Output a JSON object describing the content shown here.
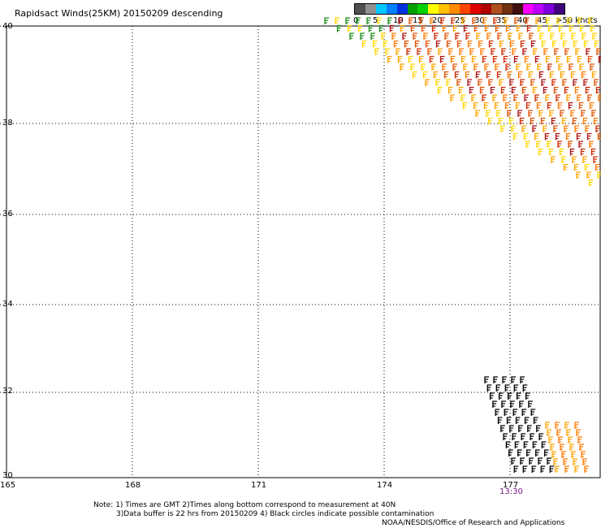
{
  "title": "Rapidsact Winds(25KM) 20150209 descending",
  "legend": {
    "colors": [
      "#505050",
      "#909090",
      "#00c8ff",
      "#0080ff",
      "#0030e0",
      "#00a000",
      "#00d000",
      "#ffff00",
      "#ffc000",
      "#ff8c00",
      "#ff4500",
      "#e00000",
      "#b00000",
      "#b05020",
      "#703010",
      "#401010",
      "#ff00ff",
      "#c000ff",
      "#8000e0",
      "#400080"
    ],
    "labels": [
      "0",
      "5",
      "10",
      "15",
      "20",
      "25",
      "30",
      "35",
      "40",
      "45",
      ">50 knots"
    ]
  },
  "axes": {
    "lat_labels": [
      "40",
      "38",
      "36",
      "34",
      "32",
      "30"
    ],
    "lon_labels": [
      "165",
      "168",
      "171",
      "174",
      "177"
    ]
  },
  "time_label": "13:30",
  "notes": {
    "line1": "Note: 1) Times are GMT 2)Times along bottom correspond to measurement at 40N",
    "line2": "3)Data buffer is 22 hrs from 20150209 4) Black circles indicate possible contamination",
    "line3": "NOAA/NESDIS/Office of Research and Applications"
  },
  "wind_color_scale": [
    "#1a8a1a",
    "#ffd700",
    "#ffa500",
    "#ff7a00",
    "#e05000",
    "#d02800",
    "#b01010"
  ],
  "contamination_color": "#000000"
}
